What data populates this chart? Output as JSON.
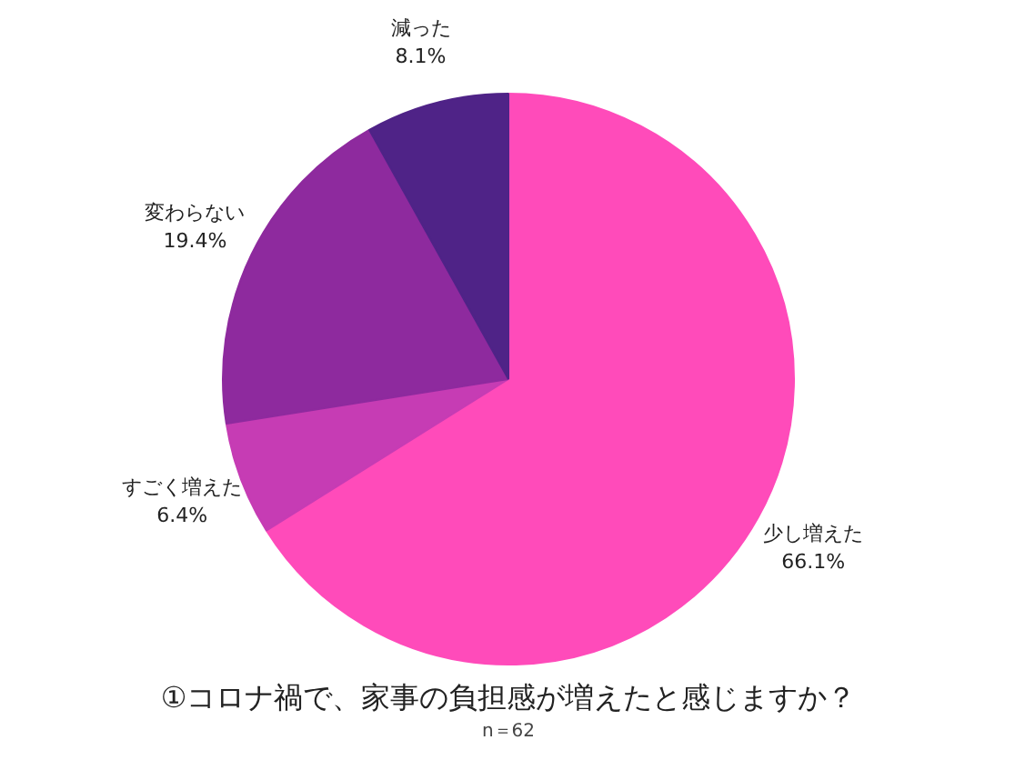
{
  "chart_data": {
    "type": "pie",
    "title": "①コロナ禍で、家事の負担感が増えたと感じますか？",
    "annotations": [
      "n＝62"
    ],
    "categories": [
      "少し増えた",
      "すごく増えた",
      "変わらない",
      "減った"
    ],
    "values": [
      66.1,
      6.4,
      19.4,
      8.1
    ],
    "value_labels": [
      "66.1%",
      "6.4%",
      "19.4%",
      "8.1%"
    ],
    "colors": [
      "#ff4bba",
      "#c63cb4",
      "#8e2a9e",
      "#4f2387"
    ]
  }
}
